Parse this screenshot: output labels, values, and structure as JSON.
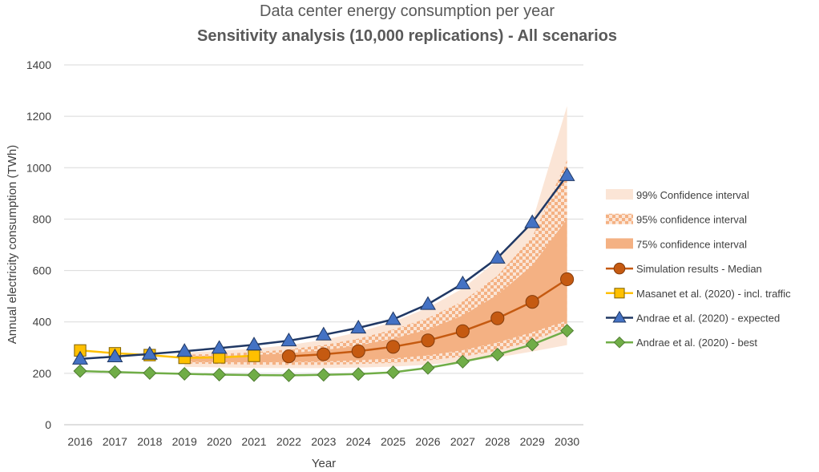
{
  "chart_data": {
    "type": "line",
    "title": "Data center energy consumption per year",
    "subtitle": "Sensitivity analysis (10,000 replications) - All scenarios",
    "xlabel": "Year",
    "ylabel": "Annual electricity consumption (TWh)",
    "ylim": [
      0,
      1400
    ],
    "yticks": [
      "0",
      "200",
      "400",
      "600",
      "800",
      "1000",
      "1200",
      "1400"
    ],
    "categories": [
      "2016",
      "2017",
      "2018",
      "2019",
      "2020",
      "2021",
      "2022",
      "2023",
      "2024",
      "2025",
      "2026",
      "2027",
      "2028",
      "2029",
      "2030"
    ],
    "grid": true,
    "legend_position": "right",
    "bands": [
      {
        "name": "99% Confidence interval",
        "color": "#fbe5d6",
        "pattern": "solid",
        "lower": [
          null,
          null,
          null,
          225,
          223,
          221,
          220,
          220,
          222,
          226,
          233,
          245,
          262,
          285,
          310
        ],
        "upper": [
          null,
          null,
          null,
          280,
          288,
          296,
          310,
          330,
          360,
          400,
          455,
          530,
          640,
          790,
          1240
        ]
      },
      {
        "name": "95% confidence interval",
        "color": "#f4b183",
        "pattern": "checker",
        "lower": [
          null,
          null,
          null,
          238,
          236,
          234,
          233,
          233,
          236,
          241,
          250,
          265,
          288,
          325,
          380
        ],
        "upper": [
          null,
          null,
          null,
          272,
          276,
          282,
          293,
          310,
          335,
          370,
          415,
          480,
          580,
          730,
          1030
        ]
      },
      {
        "name": "75% confidence interval",
        "color": "#f4b183",
        "pattern": "solid",
        "lower": [
          null,
          null,
          null,
          245,
          244,
          243,
          244,
          246,
          251,
          258,
          270,
          290,
          320,
          360,
          405
        ],
        "upper": [
          null,
          null,
          null,
          266,
          268,
          271,
          278,
          290,
          308,
          335,
          370,
          425,
          505,
          620,
          800
        ]
      }
    ],
    "series": [
      {
        "name": "Simulation results - Median",
        "color": "#c55a11",
        "marker": "circle",
        "fill": "#c55a11",
        "values": [
          null,
          null,
          null,
          null,
          null,
          null,
          266,
          274,
          286,
          303,
          328,
          364,
          414,
          478,
          566
        ]
      },
      {
        "name": "Masanet et al. (2020) - incl. traffic",
        "color": "#ffc000",
        "marker": "square",
        "fill": "#ffc000",
        "values": [
          289,
          278,
          271,
          260,
          262,
          268,
          null,
          null,
          null,
          null,
          null,
          null,
          null,
          null,
          null
        ]
      },
      {
        "name": "Andrae et al. (2020) - expected",
        "color": "#203864",
        "marker": "triangle",
        "fill": "#4472c4",
        "values": [
          256,
          265,
          275,
          286,
          298,
          311,
          327,
          350,
          377,
          410,
          469,
          549,
          649,
          787,
          970
        ]
      },
      {
        "name": "Andrae et al. (2020) - best",
        "color": "#70ad47",
        "marker": "diamond",
        "fill": "#70ad47",
        "values": [
          209,
          205,
          201,
          198,
          195,
          193,
          192,
          194,
          197,
          204,
          221,
          245,
          273,
          312,
          366
        ]
      }
    ]
  }
}
